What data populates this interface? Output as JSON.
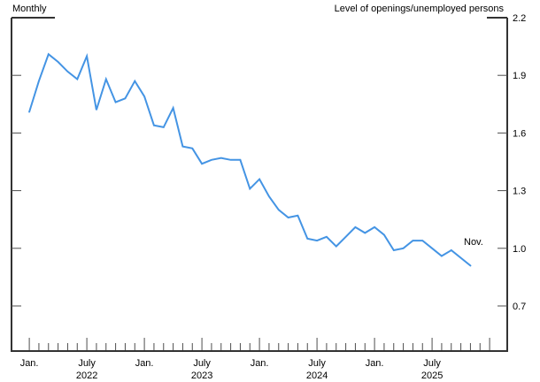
{
  "chart_data": {
    "type": "line",
    "title_left": "Monthly",
    "title_right": "Level of openings/unemployed persons",
    "end_point_label": "Nov.",
    "line_color": "#4494e4",
    "axis_color": "#333333",
    "tick_color": "#4d4d4d",
    "y_axis": {
      "side": "right",
      "tick_labels": [
        "2.2",
        "1.9",
        "1.6",
        "1.3",
        "1.0",
        "0.7"
      ],
      "top_value": 2.2,
      "tick_step": 0.3
    },
    "x_axis": {
      "frequency": "monthly",
      "first_month": "2022-01",
      "last_tick_month": "2026-01",
      "major_ticks_on": [
        "January",
        "July"
      ],
      "ticks": [
        {
          "m": 0,
          "label": "Jan."
        },
        {
          "m": 6,
          "label": "July",
          "year": "2022"
        },
        {
          "m": 12,
          "label": "Jan."
        },
        {
          "m": 18,
          "label": "July",
          "year": "2023"
        },
        {
          "m": 24,
          "label": "Jan."
        },
        {
          "m": 30,
          "label": "July",
          "year": "2024"
        },
        {
          "m": 36,
          "label": "Jan."
        },
        {
          "m": 42,
          "label": "July",
          "year": "2025"
        }
      ]
    },
    "series": [
      {
        "name": "Level of openings/unemployed persons",
        "start_month": "2022-01",
        "end_month": "2025-11",
        "note": "null value = no data published (Oct 2025); line connects Sep 2025 to Nov 2025 directly",
        "values": [
          1.71,
          1.87,
          2.01,
          1.97,
          1.92,
          1.88,
          2.0,
          1.72,
          1.88,
          1.76,
          1.78,
          1.87,
          1.79,
          1.64,
          1.63,
          1.73,
          1.53,
          1.52,
          1.44,
          1.46,
          1.47,
          1.46,
          1.46,
          1.31,
          1.36,
          1.27,
          1.2,
          1.16,
          1.17,
          1.05,
          1.04,
          1.06,
          1.01,
          1.06,
          1.11,
          1.08,
          1.11,
          1.07,
          0.99,
          1.0,
          1.04,
          1.04,
          1.0,
          0.96,
          0.99,
          null,
          0.91
        ]
      }
    ]
  }
}
